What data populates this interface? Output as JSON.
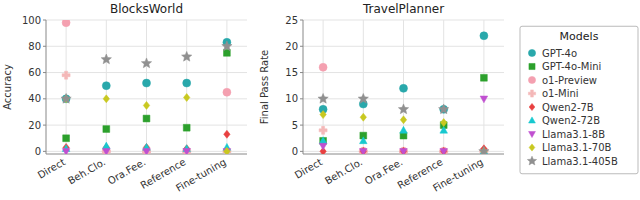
{
  "chart_data": [
    {
      "type": "scatter",
      "title": "BlocksWorld",
      "y_label": "Accuracy",
      "categories": [
        "Direct",
        "Beh.Clo.",
        "Ora.Fee.",
        "Reference",
        "Fine-tuning"
      ],
      "ylim": [
        -2,
        100
      ],
      "yticks": [
        0,
        20,
        40,
        60,
        80,
        100
      ],
      "grid": true,
      "legend": "right",
      "legend_title": "Models",
      "series": [
        {
          "name": "GPT-4o",
          "color": "#29a8ab",
          "marker": "circle",
          "values": [
            40,
            50,
            52,
            52,
            83
          ]
        },
        {
          "name": "GPT-4o-Mini",
          "color": "#2ca02c",
          "marker": "square",
          "values": [
            10,
            17,
            25,
            18,
            75
          ]
        },
        {
          "name": "o1-Preview",
          "color": "#f4a0b0",
          "marker": "circle",
          "values": [
            98,
            0,
            0,
            0,
            45
          ]
        },
        {
          "name": "o1-Mini",
          "color": "#f4b8b8",
          "marker": "plus",
          "values": [
            58,
            0,
            0,
            0,
            0
          ]
        },
        {
          "name": "Qwen2-7B",
          "color": "#e84040",
          "marker": "diamond",
          "values": [
            3,
            3,
            3,
            2,
            13
          ]
        },
        {
          "name": "Qwen2-72B",
          "color": "#17c8cf",
          "marker": "triangle-up",
          "values": [
            2,
            4,
            3,
            2,
            3
          ]
        },
        {
          "name": "Llama3.1-8B",
          "color": "#c050d0",
          "marker": "triangle-down",
          "values": [
            0,
            0,
            0,
            0,
            0
          ]
        },
        {
          "name": "Llama3.1-70B",
          "color": "#c8c820",
          "marker": "diamond",
          "values": [
            40,
            40,
            35,
            41,
            0
          ]
        },
        {
          "name": "Llama3.1-405B",
          "color": "#909090",
          "marker": "star",
          "values": [
            40,
            70,
            67,
            72,
            80
          ]
        }
      ]
    },
    {
      "type": "scatter",
      "title": "TravelPlanner",
      "y_label": "Final Pass Rate",
      "categories": [
        "Direct",
        "Beh.Clo.",
        "Ora.Fee.",
        "Reference",
        "Fine-tuning"
      ],
      "ylim": [
        -0.5,
        25
      ],
      "yticks": [
        0,
        5,
        10,
        15,
        20,
        25
      ],
      "grid": true,
      "series": [
        {
          "name": "GPT-4o",
          "color": "#29a8ab",
          "marker": "circle",
          "values": [
            8,
            9,
            12,
            8,
            22
          ]
        },
        {
          "name": "GPT-4o-Mini",
          "color": "#2ca02c",
          "marker": "square",
          "values": [
            2,
            3,
            3,
            5,
            14
          ]
        },
        {
          "name": "o1-Preview",
          "color": "#f4a0b0",
          "marker": "circle",
          "values": [
            16,
            0,
            0,
            0,
            0
          ]
        },
        {
          "name": "o1-Mini",
          "color": "#f4b8b8",
          "marker": "plus",
          "values": [
            4,
            0,
            0,
            0,
            0
          ]
        },
        {
          "name": "Qwen2-7B",
          "color": "#e84040",
          "marker": "diamond",
          "values": [
            0,
            0,
            0,
            0,
            0.5
          ]
        },
        {
          "name": "Qwen2-72B",
          "color": "#17c8cf",
          "marker": "triangle-up",
          "values": [
            2,
            2,
            4,
            4,
            0
          ]
        },
        {
          "name": "Llama3.1-8B",
          "color": "#c050d0",
          "marker": "triangle-down",
          "values": [
            1,
            0,
            0,
            0,
            10
          ]
        },
        {
          "name": "Llama3.1-70B",
          "color": "#c8c820",
          "marker": "diamond",
          "values": [
            7,
            6.5,
            6,
            5.5,
            0
          ]
        },
        {
          "name": "Llama3.1-405B",
          "color": "#909090",
          "marker": "star",
          "values": [
            10,
            10,
            8,
            8,
            0
          ]
        }
      ]
    }
  ]
}
